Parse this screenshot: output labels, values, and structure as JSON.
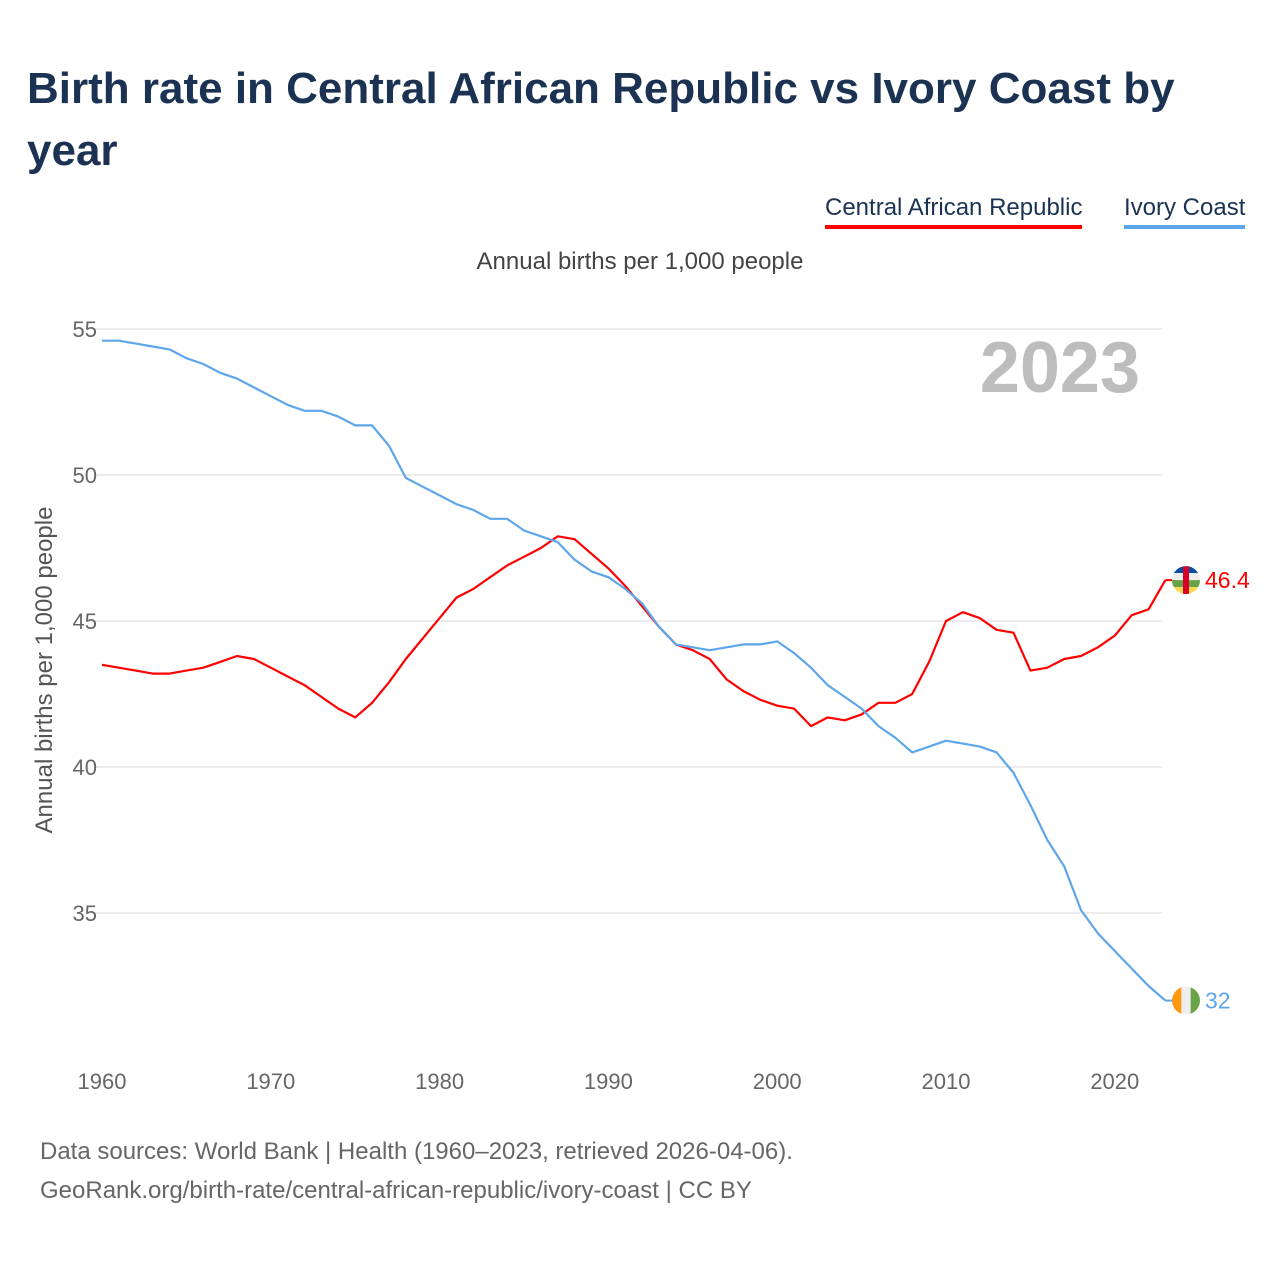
{
  "chart_data": {
    "type": "line",
    "title": "Birth rate in Central African Republic vs Ivory Coast by year",
    "subtitle": "Annual births per 1,000 people",
    "ylabel": "Annual births per 1,000 people",
    "xlabel": "",
    "year_label": "2023",
    "xlim": [
      1960,
      2023
    ],
    "ylim": [
      31,
      55
    ],
    "x_ticks": [
      "1960",
      "1970",
      "1980",
      "1990",
      "2000",
      "2010",
      "2020"
    ],
    "y_ticks": [
      "35",
      "40",
      "45",
      "50",
      "55"
    ],
    "grid": true,
    "legend_position": "top-right",
    "x": [
      1960,
      1961,
      1962,
      1963,
      1964,
      1965,
      1966,
      1967,
      1968,
      1969,
      1970,
      1971,
      1972,
      1973,
      1974,
      1975,
      1976,
      1977,
      1978,
      1979,
      1980,
      1981,
      1982,
      1983,
      1984,
      1985,
      1986,
      1987,
      1988,
      1989,
      1990,
      1991,
      1992,
      1993,
      1994,
      1995,
      1996,
      1997,
      1998,
      1999,
      2000,
      2001,
      2002,
      2003,
      2004,
      2005,
      2006,
      2007,
      2008,
      2009,
      2010,
      2011,
      2012,
      2013,
      2014,
      2015,
      2016,
      2017,
      2018,
      2019,
      2020,
      2021,
      2022,
      2023
    ],
    "series": [
      {
        "name": "Central African Republic",
        "color": "#ff0000",
        "end_label": "46.4",
        "values": [
          43.5,
          43.4,
          43.3,
          43.2,
          43.2,
          43.3,
          43.4,
          43.6,
          43.8,
          43.7,
          43.4,
          43.1,
          42.8,
          42.4,
          42.0,
          41.7,
          42.2,
          42.9,
          43.7,
          44.4,
          45.1,
          45.8,
          46.1,
          46.5,
          46.9,
          47.2,
          47.5,
          47.9,
          47.8,
          47.3,
          46.8,
          46.2,
          45.5,
          44.8,
          44.2,
          44.0,
          43.7,
          43.0,
          42.6,
          42.3,
          42.1,
          42.0,
          41.4,
          41.7,
          41.6,
          41.8,
          42.2,
          42.2,
          42.5,
          43.6,
          45.0,
          45.3,
          45.1,
          44.7,
          44.6,
          43.3,
          43.4,
          43.7,
          43.8,
          44.1,
          44.5,
          45.2,
          45.4,
          46.4
        ]
      },
      {
        "name": "Ivory Coast",
        "color": "#5ea6ea",
        "end_label": "32",
        "values": [
          54.6,
          54.6,
          54.5,
          54.4,
          54.3,
          54.0,
          53.8,
          53.5,
          53.3,
          53.0,
          52.7,
          52.4,
          52.2,
          52.2,
          52.0,
          51.7,
          51.7,
          51.0,
          49.9,
          49.6,
          49.3,
          49.0,
          48.8,
          48.5,
          48.5,
          48.1,
          47.9,
          47.7,
          47.1,
          46.7,
          46.5,
          46.1,
          45.6,
          44.8,
          44.2,
          44.1,
          44.0,
          44.1,
          44.2,
          44.2,
          44.3,
          43.9,
          43.4,
          42.8,
          42.4,
          42.0,
          41.4,
          41.0,
          40.5,
          40.7,
          40.9,
          40.8,
          40.7,
          40.5,
          39.8,
          38.7,
          37.5,
          36.6,
          35.1,
          34.3,
          33.7,
          33.1,
          32.5,
          32.0
        ]
      }
    ]
  },
  "footer": {
    "line1": "Data sources: World Bank | Health (1960–2023, retrieved 2026-04-06).",
    "line2": "GeoRank.org/birth-rate/central-african-republic/ivory-coast | CC BY"
  }
}
